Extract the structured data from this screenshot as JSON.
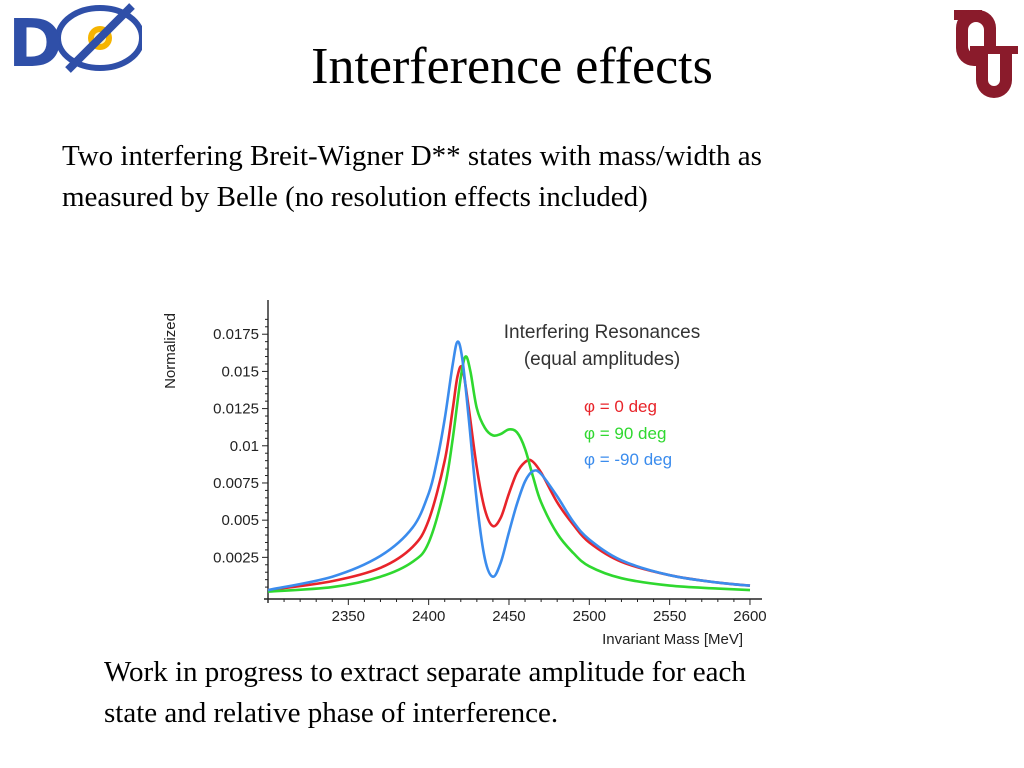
{
  "slide": {
    "title": "Interference effects",
    "intro_lines": [
      "Two interfering Breit-Wigner D** states with mass/width as",
      "measured by Belle (no resolution effects included)"
    ],
    "footer_lines": [
      "Work in progress to extract separate amplitude for each",
      "state and relative phase of interference."
    ],
    "logos": {
      "left": {
        "text": "DØ",
        "colors": {
          "letters": "#2f4fa8",
          "star": "#f5b400"
        }
      },
      "right": {
        "text": "OU",
        "color": "#8a1b2b"
      }
    }
  },
  "chart_data": {
    "type": "line",
    "title": "Interfering Resonances",
    "subtitle": "(equal amplitudes)",
    "xlabel": "Invariant Mass [MeV]",
    "ylabel": "Normalized",
    "xlim": [
      2300,
      2605
    ],
    "ylim": [
      -0.0003,
      0.0198
    ],
    "xticks": [
      2350,
      2400,
      2450,
      2500,
      2550,
      2600
    ],
    "xtick_labels": [
      "2350",
      "2400",
      "2450",
      "2500",
      "2550",
      "2600"
    ],
    "yticks": [
      0.0025,
      0.005,
      0.0075,
      0.01,
      0.0125,
      0.015,
      0.0175
    ],
    "ytick_labels": [
      "0.0025",
      "0.005",
      "0.0075",
      "0.01",
      "0.0125",
      "0.015",
      "0.0175"
    ],
    "legend_position": "right",
    "grid": false,
    "series": [
      {
        "name": "φ = 0 deg",
        "color": "#e8242a",
        "x": [
          2300,
          2340,
          2370,
          2390,
          2400,
          2410,
          2415,
          2418,
          2421,
          2425,
          2430,
          2435,
          2440,
          2445,
          2450,
          2455,
          2460,
          2464,
          2470,
          2480,
          2490,
          2500,
          2520,
          2550,
          2580,
          2600
        ],
        "y": [
          0.0003,
          0.0009,
          0.0018,
          0.0032,
          0.005,
          0.009,
          0.0125,
          0.0147,
          0.0152,
          0.0125,
          0.0085,
          0.0057,
          0.0046,
          0.0052,
          0.0068,
          0.0082,
          0.0089,
          0.009,
          0.0082,
          0.0062,
          0.0047,
          0.0035,
          0.0022,
          0.0013,
          0.0008,
          0.0006
        ]
      },
      {
        "name": "φ = 90 deg",
        "color": "#2fd82f",
        "x": [
          2300,
          2340,
          2370,
          2390,
          2400,
          2410,
          2415,
          2420,
          2423,
          2426,
          2430,
          2435,
          2440,
          2445,
          2450,
          2455,
          2460,
          2465,
          2470,
          2480,
          2490,
          2500,
          2520,
          2550,
          2580,
          2600
        ],
        "y": [
          0.0002,
          0.0005,
          0.0012,
          0.0022,
          0.0035,
          0.0072,
          0.0105,
          0.0146,
          0.016,
          0.015,
          0.0125,
          0.0112,
          0.0107,
          0.0108,
          0.0111,
          0.0109,
          0.0098,
          0.0079,
          0.0062,
          0.0041,
          0.0028,
          0.0019,
          0.0011,
          0.0006,
          0.0004,
          0.0003
        ]
      },
      {
        "name": "φ = -90 deg",
        "color": "#3b8ced",
        "x": [
          2300,
          2340,
          2370,
          2390,
          2400,
          2405,
          2410,
          2415,
          2418,
          2421,
          2425,
          2430,
          2435,
          2440,
          2445,
          2450,
          2455,
          2460,
          2465,
          2470,
          2480,
          2490,
          2500,
          2520,
          2550,
          2580,
          2600
        ],
        "y": [
          0.0003,
          0.0012,
          0.0026,
          0.0045,
          0.0068,
          0.0089,
          0.0118,
          0.0155,
          0.017,
          0.0158,
          0.0118,
          0.0062,
          0.0024,
          0.0012,
          0.0022,
          0.0042,
          0.0061,
          0.0076,
          0.0083,
          0.0081,
          0.0066,
          0.0049,
          0.0037,
          0.0023,
          0.0013,
          0.0008,
          0.0006
        ]
      }
    ]
  }
}
